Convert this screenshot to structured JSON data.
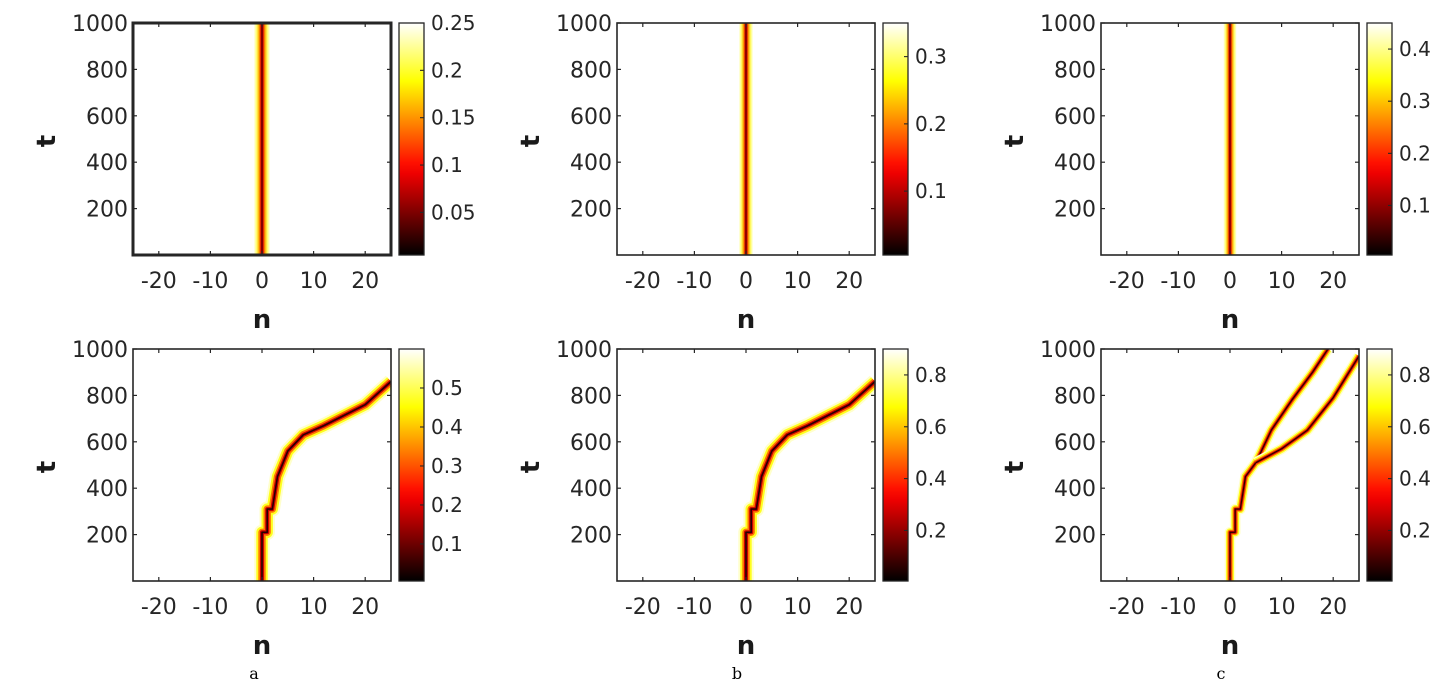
{
  "colormap": "hot",
  "captions": [
    "a",
    "b",
    "c"
  ],
  "chart_data": [
    {
      "type": "heatmap",
      "panel": "a-top",
      "xlabel": "n",
      "ylabel": "t",
      "xlim": [
        -25,
        25
      ],
      "ylim": [
        0,
        1000
      ],
      "xticks": [
        -20,
        -10,
        0,
        10,
        20
      ],
      "yticks": [
        200,
        400,
        600,
        800,
        1000
      ],
      "colorbar": {
        "min": 0.005,
        "max": 0.25,
        "ticks": [
          0.05,
          0.1,
          0.15,
          0.2,
          0.25
        ],
        "tick_labels": [
          "0.05",
          "0.1",
          "0.15",
          "0.2",
          "0.25"
        ]
      },
      "trajectories": [
        {
          "points": [
            [
              0,
              0
            ],
            [
              0,
              1000
            ]
          ],
          "halfwidth": 1.6
        }
      ]
    },
    {
      "type": "heatmap",
      "panel": "b-top",
      "xlabel": "n",
      "ylabel": "t",
      "xlim": [
        -25,
        25
      ],
      "ylim": [
        0,
        1000
      ],
      "xticks": [
        -20,
        -10,
        0,
        10,
        20
      ],
      "yticks": [
        200,
        400,
        600,
        800,
        1000
      ],
      "colorbar": {
        "min": 0.005,
        "max": 0.35,
        "ticks": [
          0.1,
          0.2,
          0.3
        ],
        "tick_labels": [
          "0.1",
          "0.2",
          "0.3"
        ]
      },
      "trajectories": [
        {
          "points": [
            [
              0,
              0
            ],
            [
              0,
              1000
            ]
          ],
          "halfwidth": 1.4
        }
      ]
    },
    {
      "type": "heatmap",
      "panel": "c-top",
      "xlabel": "n",
      "ylabel": "t",
      "xlim": [
        -25,
        25
      ],
      "ylim": [
        0,
        1000
      ],
      "xticks": [
        -20,
        -10,
        0,
        10,
        20
      ],
      "yticks": [
        200,
        400,
        600,
        800,
        1000
      ],
      "colorbar": {
        "min": 0.005,
        "max": 0.45,
        "ticks": [
          0.1,
          0.2,
          0.3,
          0.4
        ],
        "tick_labels": [
          "0.1",
          "0.2",
          "0.3",
          "0.4"
        ]
      },
      "trajectories": [
        {
          "points": [
            [
              0,
              0
            ],
            [
              0,
              1000
            ]
          ],
          "halfwidth": 1.3
        }
      ]
    },
    {
      "type": "heatmap",
      "panel": "a-bottom",
      "xlabel": "n",
      "ylabel": "t",
      "xlim": [
        -25,
        25
      ],
      "ylim": [
        0,
        1000
      ],
      "xticks": [
        -20,
        -10,
        0,
        10,
        20
      ],
      "yticks": [
        200,
        400,
        600,
        800,
        1000
      ],
      "colorbar": {
        "min": 0.005,
        "max": 0.6,
        "ticks": [
          0.1,
          0.2,
          0.3,
          0.4,
          0.5
        ],
        "tick_labels": [
          "0.1",
          "0.2",
          "0.3",
          "0.4",
          "0.5"
        ]
      },
      "trajectories": [
        {
          "points": [
            [
              0,
              0
            ],
            [
              0,
              210
            ],
            [
              1,
              210
            ],
            [
              1,
              310
            ],
            [
              2,
              310
            ],
            [
              3,
              450
            ],
            [
              5,
              560
            ],
            [
              8,
              630
            ],
            [
              12,
              670
            ],
            [
              20,
              760
            ],
            [
              25,
              860
            ]
          ],
          "halfwidth": 1.3
        }
      ]
    },
    {
      "type": "heatmap",
      "panel": "b-bottom",
      "xlabel": "n",
      "ylabel": "t",
      "xlim": [
        -25,
        25
      ],
      "ylim": [
        0,
        1000
      ],
      "xticks": [
        -20,
        -10,
        0,
        10,
        20
      ],
      "yticks": [
        200,
        400,
        600,
        800,
        1000
      ],
      "colorbar": {
        "min": 0.005,
        "max": 0.9,
        "ticks": [
          0.2,
          0.4,
          0.6,
          0.8
        ],
        "tick_labels": [
          "0.2",
          "0.4",
          "0.6",
          "0.8"
        ]
      },
      "trajectories": [
        {
          "points": [
            [
              0,
              0
            ],
            [
              0,
              210
            ],
            [
              1,
              210
            ],
            [
              1,
              310
            ],
            [
              2,
              310
            ],
            [
              3,
              450
            ],
            [
              5,
              560
            ],
            [
              8,
              630
            ],
            [
              12,
              670
            ],
            [
              20,
              760
            ],
            [
              25,
              860
            ]
          ],
          "halfwidth": 1.3
        }
      ]
    },
    {
      "type": "heatmap",
      "panel": "c-bottom",
      "xlabel": "n",
      "ylabel": "t",
      "xlim": [
        -25,
        25
      ],
      "ylim": [
        0,
        1000
      ],
      "xticks": [
        -20,
        -10,
        0,
        10,
        20
      ],
      "yticks": [
        200,
        400,
        600,
        800,
        1000
      ],
      "colorbar": {
        "min": 0.005,
        "max": 0.9,
        "ticks": [
          0.2,
          0.4,
          0.6,
          0.8
        ],
        "tick_labels": [
          "0.2",
          "0.4",
          "0.6",
          "0.8"
        ]
      },
      "trajectories": [
        {
          "points": [
            [
              0,
              0
            ],
            [
              0,
              210
            ],
            [
              1,
              210
            ],
            [
              1,
              310
            ],
            [
              2,
              310
            ],
            [
              3,
              450
            ],
            [
              5,
              510
            ],
            [
              8,
              650
            ],
            [
              12,
              780
            ],
            [
              16,
              900
            ],
            [
              19,
              1000
            ]
          ],
          "halfwidth": 0.9
        },
        {
          "points": [
            [
              5,
              510
            ],
            [
              10,
              570
            ],
            [
              15,
              650
            ],
            [
              20,
              790
            ],
            [
              25,
              970
            ]
          ],
          "halfwidth": 0.9
        }
      ]
    }
  ]
}
